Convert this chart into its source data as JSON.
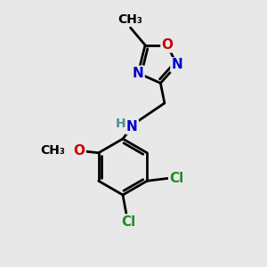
{
  "background_color": "#e8e8e8",
  "bond_color": "#000000",
  "bond_width": 2.0,
  "atom_colors": {
    "N": "#0000cc",
    "O": "#cc0000",
    "Cl": "#228B22",
    "H": "#4a9090"
  },
  "font_size_atom": 11,
  "font_size_methyl": 10,
  "font_size_cl": 11,
  "font_size_h": 10
}
